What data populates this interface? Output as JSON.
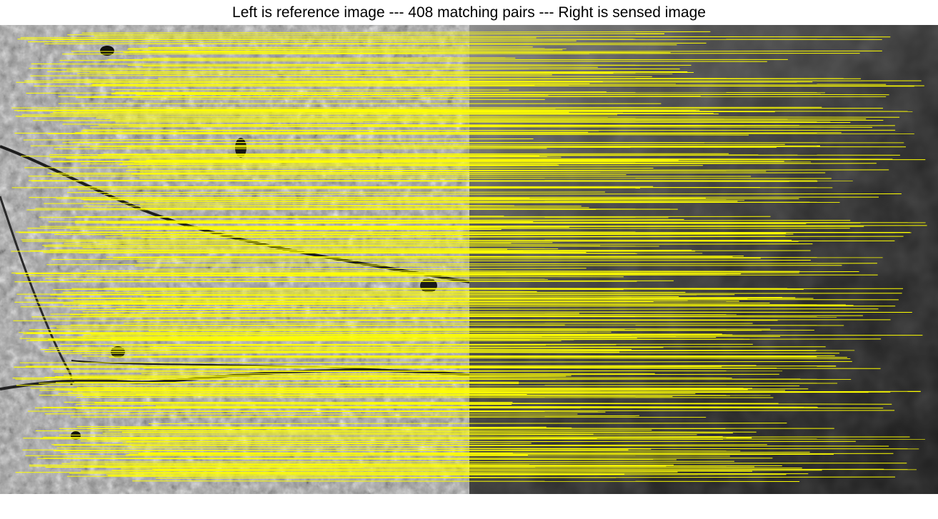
{
  "title": "Left is reference image --- 408 matching pairs --- Right is sensed image",
  "match_count": 408,
  "colors": {
    "match_line": "#ffff00",
    "left_image_tone": "#9a9a9a",
    "right_image_tone": "#2e2e2e",
    "background": "#ffffff"
  },
  "panels": {
    "left": {
      "content": "reference image (grayscale aerial photograph)"
    },
    "right": {
      "content": "sensed image (dark grayscale terrain image)"
    }
  }
}
